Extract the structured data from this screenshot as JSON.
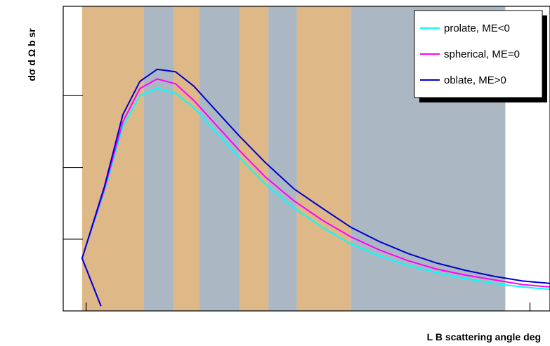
{
  "chart_data": {
    "type": "line",
    "xlabel": "L B scattering angle  deg",
    "ylabel": "dσ  d Ω  b sr",
    "xlim": [
      15,
      100
    ],
    "ylim": [
      0,
      1.3
    ],
    "ytick_values": [
      0.3,
      0.6,
      0.9
    ],
    "xtick_values": [
      19,
      96.5
    ],
    "legend_position": "top-right",
    "bands": [
      {
        "start": 18.3,
        "end": 29.1,
        "color": "#deb887"
      },
      {
        "start": 29.1,
        "end": 34.3,
        "color": "#abb8c3"
      },
      {
        "start": 34.3,
        "end": 38.8,
        "color": "#deb887"
      },
      {
        "start": 38.8,
        "end": 45.8,
        "color": "#abb8c3"
      },
      {
        "start": 45.8,
        "end": 50.8,
        "color": "#deb887"
      },
      {
        "start": 50.8,
        "end": 55.8,
        "color": "#abb8c3"
      },
      {
        "start": 55.8,
        "end": 65.2,
        "color": "#deb887"
      },
      {
        "start": 65.2,
        "end": 92.2,
        "color": "#abb8c3"
      }
    ],
    "x": [
      21.6,
      18.3,
      22.2,
      25.4,
      28.4,
      31.4,
      34.6,
      37.8,
      41.6,
      45.8,
      50.3,
      55.3,
      60.2,
      65.2,
      70.2,
      75.2,
      80.2,
      85.2,
      90.2,
      95.2,
      100.0
    ],
    "series": [
      {
        "name": "prolate, ME<0",
        "color": "#00ffff",
        "y": [
          0.02,
          0.22,
          0.5,
          0.77,
          0.9,
          0.93,
          0.91,
          0.85,
          0.75,
          0.64,
          0.53,
          0.43,
          0.35,
          0.28,
          0.23,
          0.19,
          0.16,
          0.135,
          0.115,
          0.1,
          0.09
        ]
      },
      {
        "name": "spherical, ME=0",
        "color": "#ff00ff",
        "y": [
          0.02,
          0.22,
          0.51,
          0.79,
          0.93,
          0.97,
          0.95,
          0.88,
          0.78,
          0.67,
          0.56,
          0.46,
          0.38,
          0.31,
          0.255,
          0.21,
          0.175,
          0.15,
          0.13,
          0.11,
          0.1
        ]
      },
      {
        "name": "oblate, ME>0",
        "color": "#0000cc",
        "y": [
          0.02,
          0.22,
          0.52,
          0.82,
          0.96,
          1.01,
          1.0,
          0.94,
          0.84,
          0.73,
          0.62,
          0.51,
          0.43,
          0.35,
          0.29,
          0.24,
          0.2,
          0.17,
          0.145,
          0.125,
          0.115
        ]
      }
    ]
  }
}
